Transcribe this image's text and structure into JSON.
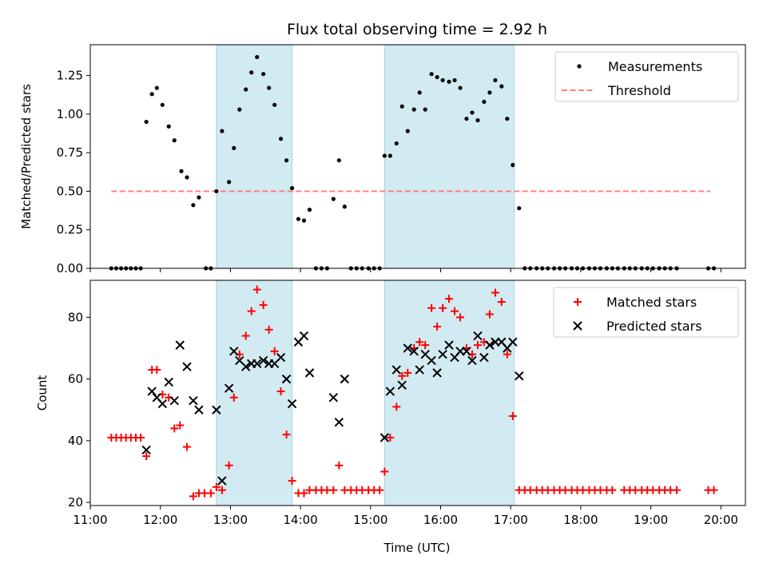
{
  "title": "Flux total observing time = 2.92 h",
  "x_axis": {
    "label": "Time (UTC)",
    "range_hours": [
      11.0,
      20.35
    ],
    "ticks": [
      {
        "h": 11,
        "label": "11:00"
      },
      {
        "h": 12,
        "label": "12:00"
      },
      {
        "h": 13,
        "label": "13:00"
      },
      {
        "h": 14,
        "label": "14:00"
      },
      {
        "h": 15,
        "label": "15:00"
      },
      {
        "h": 16,
        "label": "16:00"
      },
      {
        "h": 17,
        "label": "17:00"
      },
      {
        "h": 18,
        "label": "18:00"
      },
      {
        "h": 19,
        "label": "19:00"
      },
      {
        "h": 20,
        "label": "20:00"
      }
    ]
  },
  "colors": {
    "shade": "#add8e6",
    "threshold": "#ff7f7f",
    "matched": "#ff0000",
    "predicted": "#000000"
  },
  "chart_data": [
    {
      "type": "scatter",
      "ylabel": "Matched/Predicted stars",
      "ylim": [
        0,
        1.45
      ],
      "yticks": [
        0,
        0.25,
        0.5,
        0.75,
        1.0,
        1.25
      ],
      "ytick_labels": [
        "0.00",
        "0.25",
        "0.50",
        "0.75",
        "1.00",
        "1.25"
      ],
      "shaded_intervals": [
        [
          12.8,
          13.88
        ],
        [
          15.2,
          17.05
        ]
      ],
      "legend_position": "upper right",
      "legend": [
        "Measurements",
        "Threshold"
      ],
      "threshold": {
        "name": "Threshold",
        "x": [
          11.3,
          19.85
        ],
        "y": 0.5
      },
      "series": [
        {
          "name": "Measurements",
          "points": [
            [
              11.3,
              0
            ],
            [
              11.37,
              0
            ],
            [
              11.44,
              0
            ],
            [
              11.51,
              0
            ],
            [
              11.58,
              0
            ],
            [
              11.65,
              0
            ],
            [
              11.72,
              0
            ],
            [
              11.8,
              0.95
            ],
            [
              11.88,
              1.13
            ],
            [
              11.95,
              1.17
            ],
            [
              12.03,
              1.06
            ],
            [
              12.12,
              0.92
            ],
            [
              12.2,
              0.83
            ],
            [
              12.3,
              0.63
            ],
            [
              12.38,
              0.59
            ],
            [
              12.47,
              0.41
            ],
            [
              12.55,
              0.46
            ],
            [
              12.65,
              0
            ],
            [
              12.72,
              0
            ],
            [
              12.8,
              0.5
            ],
            [
              12.88,
              0.89
            ],
            [
              12.98,
              0.56
            ],
            [
              13.05,
              0.78
            ],
            [
              13.13,
              1.03
            ],
            [
              13.22,
              1.16
            ],
            [
              13.3,
              1.27
            ],
            [
              13.38,
              1.37
            ],
            [
              13.47,
              1.26
            ],
            [
              13.55,
              1.17
            ],
            [
              13.63,
              1.06
            ],
            [
              13.72,
              0.84
            ],
            [
              13.8,
              0.7
            ],
            [
              13.88,
              0.52
            ],
            [
              13.97,
              0.32
            ],
            [
              14.05,
              0.31
            ],
            [
              14.13,
              0.38
            ],
            [
              14.22,
              0
            ],
            [
              14.3,
              0
            ],
            [
              14.38,
              0
            ],
            [
              14.47,
              0.45
            ],
            [
              14.55,
              0.7
            ],
            [
              14.63,
              0.4
            ],
            [
              14.72,
              0
            ],
            [
              14.8,
              0
            ],
            [
              14.88,
              0
            ],
            [
              14.97,
              0
            ],
            [
              15.05,
              0
            ],
            [
              15.13,
              0
            ],
            [
              15.2,
              0.73
            ],
            [
              15.28,
              0.73
            ],
            [
              15.37,
              0.81
            ],
            [
              15.45,
              1.05
            ],
            [
              15.53,
              0.89
            ],
            [
              15.62,
              1.03
            ],
            [
              15.7,
              1.14
            ],
            [
              15.78,
              1.03
            ],
            [
              15.87,
              1.26
            ],
            [
              15.95,
              1.24
            ],
            [
              16.03,
              1.22
            ],
            [
              16.12,
              1.21
            ],
            [
              16.2,
              1.22
            ],
            [
              16.28,
              1.17
            ],
            [
              16.37,
              0.97
            ],
            [
              16.45,
              1.01
            ],
            [
              16.53,
              0.96
            ],
            [
              16.62,
              1.08
            ],
            [
              16.7,
              1.14
            ],
            [
              16.78,
              1.22
            ],
            [
              16.87,
              1.18
            ],
            [
              16.95,
              0.97
            ],
            [
              17.03,
              0.67
            ],
            [
              17.12,
              0.39
            ],
            [
              17.2,
              0
            ],
            [
              17.28,
              0
            ],
            [
              17.37,
              0
            ],
            [
              17.45,
              0
            ],
            [
              17.53,
              0
            ],
            [
              17.62,
              0
            ],
            [
              17.7,
              0
            ],
            [
              17.78,
              0
            ],
            [
              17.87,
              0
            ],
            [
              17.95,
              0
            ],
            [
              18.03,
              0
            ],
            [
              18.12,
              0
            ],
            [
              18.2,
              0
            ],
            [
              18.28,
              0
            ],
            [
              18.37,
              0
            ],
            [
              18.45,
              0
            ],
            [
              18.53,
              0
            ],
            [
              18.62,
              0
            ],
            [
              18.7,
              0
            ],
            [
              18.78,
              0
            ],
            [
              18.87,
              0
            ],
            [
              18.95,
              0
            ],
            [
              19.03,
              0
            ],
            [
              19.12,
              0
            ],
            [
              19.2,
              0
            ],
            [
              19.28,
              0
            ],
            [
              19.37,
              0
            ],
            [
              19.82,
              0
            ],
            [
              19.9,
              0
            ]
          ]
        }
      ]
    },
    {
      "type": "scatter",
      "ylabel": "Count",
      "ylim": [
        19,
        92
      ],
      "yticks": [
        20,
        40,
        60,
        80
      ],
      "ytick_labels": [
        "20",
        "40",
        "60",
        "80"
      ],
      "shaded_intervals": [
        [
          12.8,
          13.88
        ],
        [
          15.2,
          17.05
        ]
      ],
      "legend_position": "upper right",
      "legend": [
        "Matched stars",
        "Predicted stars"
      ],
      "series": [
        {
          "name": "Matched stars",
          "marker": "plus",
          "points": [
            [
              11.3,
              41
            ],
            [
              11.37,
              41
            ],
            [
              11.44,
              41
            ],
            [
              11.51,
              41
            ],
            [
              11.58,
              41
            ],
            [
              11.65,
              41
            ],
            [
              11.72,
              41
            ],
            [
              11.8,
              35
            ],
            [
              11.88,
              63
            ],
            [
              11.95,
              63
            ],
            [
              12.03,
              55
            ],
            [
              12.12,
              54
            ],
            [
              12.2,
              44
            ],
            [
              12.28,
              45
            ],
            [
              12.38,
              38
            ],
            [
              12.47,
              22
            ],
            [
              12.55,
              23
            ],
            [
              12.63,
              23
            ],
            [
              12.72,
              23
            ],
            [
              12.8,
              25
            ],
            [
              12.88,
              24
            ],
            [
              12.98,
              32
            ],
            [
              13.05,
              54
            ],
            [
              13.13,
              68
            ],
            [
              13.22,
              74
            ],
            [
              13.3,
              82
            ],
            [
              13.38,
              89
            ],
            [
              13.47,
              84
            ],
            [
              13.55,
              76
            ],
            [
              13.63,
              69
            ],
            [
              13.72,
              56
            ],
            [
              13.8,
              42
            ],
            [
              13.88,
              27
            ],
            [
              13.97,
              23
            ],
            [
              14.05,
              23
            ],
            [
              14.13,
              24
            ],
            [
              14.22,
              24
            ],
            [
              14.3,
              24
            ],
            [
              14.38,
              24
            ],
            [
              14.47,
              24
            ],
            [
              14.55,
              32
            ],
            [
              14.63,
              24
            ],
            [
              14.72,
              24
            ],
            [
              14.8,
              24
            ],
            [
              14.88,
              24
            ],
            [
              14.97,
              24
            ],
            [
              15.05,
              24
            ],
            [
              15.13,
              24
            ],
            [
              15.2,
              30
            ],
            [
              15.28,
              41
            ],
            [
              15.37,
              51
            ],
            [
              15.45,
              61
            ],
            [
              15.53,
              62
            ],
            [
              15.62,
              70
            ],
            [
              15.7,
              72
            ],
            [
              15.78,
              71
            ],
            [
              15.87,
              83
            ],
            [
              15.95,
              77
            ],
            [
              16.03,
              83
            ],
            [
              16.12,
              86
            ],
            [
              16.2,
              82
            ],
            [
              16.28,
              80
            ],
            [
              16.37,
              70
            ],
            [
              16.45,
              68
            ],
            [
              16.53,
              71
            ],
            [
              16.62,
              72
            ],
            [
              16.7,
              81
            ],
            [
              16.78,
              88
            ],
            [
              16.87,
              85
            ],
            [
              16.95,
              68
            ],
            [
              17.03,
              48
            ],
            [
              17.12,
              24
            ],
            [
              17.2,
              24
            ],
            [
              17.28,
              24
            ],
            [
              17.37,
              24
            ],
            [
              17.45,
              24
            ],
            [
              17.53,
              24
            ],
            [
              17.62,
              24
            ],
            [
              17.7,
              24
            ],
            [
              17.78,
              24
            ],
            [
              17.87,
              24
            ],
            [
              17.95,
              24
            ],
            [
              18.03,
              24
            ],
            [
              18.12,
              24
            ],
            [
              18.2,
              24
            ],
            [
              18.28,
              24
            ],
            [
              18.37,
              24
            ],
            [
              18.45,
              24
            ],
            [
              18.62,
              24
            ],
            [
              18.7,
              24
            ],
            [
              18.78,
              24
            ],
            [
              18.87,
              24
            ],
            [
              18.95,
              24
            ],
            [
              19.03,
              24
            ],
            [
              19.12,
              24
            ],
            [
              19.2,
              24
            ],
            [
              19.28,
              24
            ],
            [
              19.37,
              24
            ],
            [
              19.82,
              24
            ],
            [
              19.9,
              24
            ]
          ]
        },
        {
          "name": "Predicted stars",
          "marker": "x",
          "points": [
            [
              11.8,
              37
            ],
            [
              11.88,
              56
            ],
            [
              11.95,
              54
            ],
            [
              12.03,
              52
            ],
            [
              12.12,
              59
            ],
            [
              12.2,
              53
            ],
            [
              12.28,
              71
            ],
            [
              12.38,
              64
            ],
            [
              12.47,
              53
            ],
            [
              12.55,
              50
            ],
            [
              12.8,
              50
            ],
            [
              12.88,
              27
            ],
            [
              12.98,
              57
            ],
            [
              13.05,
              69
            ],
            [
              13.13,
              66
            ],
            [
              13.22,
              64
            ],
            [
              13.3,
              65
            ],
            [
              13.38,
              65
            ],
            [
              13.47,
              66
            ],
            [
              13.55,
              65
            ],
            [
              13.63,
              65
            ],
            [
              13.72,
              67
            ],
            [
              13.8,
              60
            ],
            [
              13.88,
              52
            ],
            [
              13.97,
              72
            ],
            [
              14.05,
              74
            ],
            [
              14.13,
              62
            ],
            [
              14.47,
              54
            ],
            [
              14.55,
              46
            ],
            [
              14.63,
              60
            ],
            [
              15.2,
              41
            ],
            [
              15.28,
              56
            ],
            [
              15.37,
              63
            ],
            [
              15.45,
              58
            ],
            [
              15.53,
              70
            ],
            [
              15.62,
              69
            ],
            [
              15.7,
              63
            ],
            [
              15.78,
              68
            ],
            [
              15.87,
              66
            ],
            [
              15.95,
              62
            ],
            [
              16.03,
              68
            ],
            [
              16.12,
              71
            ],
            [
              16.2,
              67
            ],
            [
              16.28,
              69
            ],
            [
              16.37,
              69
            ],
            [
              16.45,
              66
            ],
            [
              16.53,
              74
            ],
            [
              16.62,
              67
            ],
            [
              16.7,
              71
            ],
            [
              16.78,
              72
            ],
            [
              16.87,
              72
            ],
            [
              16.95,
              70
            ],
            [
              17.03,
              72
            ],
            [
              17.12,
              61
            ]
          ]
        }
      ]
    }
  ]
}
